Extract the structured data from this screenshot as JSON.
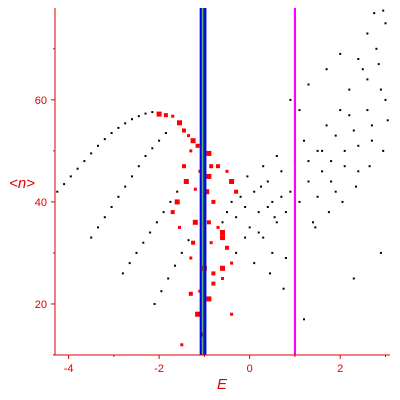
{
  "chart_data": {
    "type": "scatter",
    "xlabel": "E",
    "ylabel": "<n>",
    "xlim": [
      -4.3,
      3.1
    ],
    "ylim": [
      10,
      78
    ],
    "x_ticks": [
      -4,
      -2,
      0,
      2
    ],
    "y_ticks": [
      20,
      40,
      60
    ],
    "axis_color": "#e00000",
    "vertical_lines": [
      {
        "x": -1.08,
        "color": "#0000ff"
      },
      {
        "x": -1.02,
        "color": "#008000"
      },
      {
        "x": -0.98,
        "color": "#0000ff"
      },
      {
        "x": 1.0,
        "color": "#ff00ff"
      }
    ],
    "series": [
      {
        "color": "#000000",
        "points": [
          [
            -4.25,
            42.0
          ],
          [
            -4.1,
            43.5
          ],
          [
            -3.95,
            45.0
          ],
          [
            -3.8,
            46.5
          ],
          [
            -3.65,
            48.0
          ],
          [
            -3.5,
            49.5
          ],
          [
            -3.35,
            51.0
          ],
          [
            -3.2,
            52.3
          ],
          [
            -3.05,
            53.5
          ],
          [
            -2.9,
            54.5
          ],
          [
            -2.75,
            55.4
          ],
          [
            -2.6,
            56.2
          ],
          [
            -2.45,
            56.8
          ],
          [
            -2.3,
            57.3
          ],
          [
            -2.15,
            57.6
          ],
          [
            -3.5,
            33.0
          ],
          [
            -3.35,
            35.0
          ],
          [
            -3.2,
            37.0
          ],
          [
            -3.05,
            39.0
          ],
          [
            -2.9,
            41.0
          ],
          [
            -2.75,
            43.0
          ],
          [
            -2.6,
            45.0
          ],
          [
            -2.45,
            47.0
          ],
          [
            -2.3,
            49.0
          ],
          [
            -2.15,
            50.5
          ],
          [
            -2.0,
            52.0
          ],
          [
            -1.85,
            53.5
          ],
          [
            -2.8,
            26.0
          ],
          [
            -2.65,
            28.0
          ],
          [
            -2.5,
            30.0
          ],
          [
            -2.35,
            32.0
          ],
          [
            -2.2,
            34.0
          ],
          [
            -2.05,
            36.0
          ],
          [
            -1.9,
            38.0
          ],
          [
            -1.75,
            40.0
          ],
          [
            -1.6,
            42.0
          ],
          [
            -2.1,
            20.0
          ],
          [
            -1.95,
            22.5
          ],
          [
            -1.8,
            25.0
          ],
          [
            -1.65,
            27.5
          ],
          [
            -1.5,
            30.0
          ],
          [
            -1.35,
            32.5
          ],
          [
            -0.6,
            36.0
          ],
          [
            -0.5,
            38.0
          ],
          [
            -0.4,
            40.0
          ],
          [
            -0.3,
            37.0
          ],
          [
            -0.2,
            41.0
          ],
          [
            -0.1,
            39.0
          ],
          [
            0.0,
            35.0
          ],
          [
            0.1,
            42.0
          ],
          [
            0.2,
            38.0
          ],
          [
            0.3,
            33.0
          ],
          [
            0.4,
            44.0
          ],
          [
            0.5,
            40.0
          ],
          [
            0.6,
            36.0
          ],
          [
            0.7,
            46.0
          ],
          [
            0.8,
            38.0
          ],
          [
            0.9,
            42.0
          ],
          [
            1.0,
            48.0
          ],
          [
            1.1,
            40.0
          ],
          [
            1.2,
            52.0
          ],
          [
            1.3,
            44.0
          ],
          [
            1.4,
            36.0
          ],
          [
            1.5,
            50.0
          ],
          [
            1.6,
            46.0
          ],
          [
            1.7,
            55.0
          ],
          [
            1.8,
            48.0
          ],
          [
            1.9,
            42.0
          ],
          [
            2.0,
            58.0
          ],
          [
            2.1,
            50.0
          ],
          [
            2.2,
            62.0
          ],
          [
            2.3,
            54.0
          ],
          [
            2.4,
            46.0
          ],
          [
            2.5,
            66.0
          ],
          [
            2.6,
            58.0
          ],
          [
            2.7,
            52.0
          ],
          [
            2.8,
            70.0
          ],
          [
            2.9,
            62.0
          ],
          [
            3.0,
            75.0
          ],
          [
            3.05,
            56.0
          ],
          [
            2.75,
            77.0
          ],
          [
            2.95,
            77.5
          ],
          [
            2.6,
            73.0
          ],
          [
            2.4,
            68.0
          ],
          [
            2.2,
            57.0
          ],
          [
            1.9,
            53.0
          ],
          [
            1.6,
            50.0
          ],
          [
            1.3,
            48.0
          ],
          [
            1.0,
            45.0
          ],
          [
            0.7,
            41.0
          ],
          [
            0.4,
            39.0
          ],
          [
            0.2,
            34.0
          ],
          [
            -0.1,
            33.0
          ],
          [
            0.5,
            30.0
          ],
          [
            0.8,
            29.0
          ],
          [
            1.2,
            17.0
          ],
          [
            2.3,
            25.0
          ],
          [
            2.9,
            30.0
          ],
          [
            1.5,
            41.0
          ],
          [
            1.8,
            44.0
          ],
          [
            2.1,
            47.0
          ],
          [
            2.4,
            51.0
          ],
          [
            2.7,
            55.0
          ],
          [
            3.0,
            60.0
          ],
          [
            1.1,
            58.0
          ],
          [
            0.9,
            60.0
          ],
          [
            1.3,
            63.0
          ],
          [
            1.7,
            66.0
          ],
          [
            2.0,
            69.0
          ],
          [
            2.6,
            64.0
          ],
          [
            2.85,
            67.0
          ],
          [
            0.3,
            47.0
          ],
          [
            0.6,
            49.0
          ],
          [
            -0.3,
            30.0
          ],
          [
            0.1,
            28.0
          ],
          [
            0.45,
            26.0
          ],
          [
            0.75,
            23.0
          ],
          [
            1.45,
            35.0
          ],
          [
            1.75,
            38.0
          ],
          [
            2.05,
            40.0
          ],
          [
            2.35,
            43.0
          ],
          [
            2.65,
            47.0
          ],
          [
            2.95,
            50.0
          ],
          [
            -0.05,
            45.0
          ],
          [
            0.25,
            43.0
          ],
          [
            0.55,
            37.0
          ]
        ]
      },
      {
        "color": "#ff0000",
        "points": [
          [
            -2.0,
            57.2
          ],
          [
            -1.85,
            57.0
          ],
          [
            -1.7,
            56.8
          ],
          [
            -1.55,
            55.5
          ],
          [
            -1.45,
            54.0
          ],
          [
            -1.35,
            53.0
          ],
          [
            -1.25,
            52.0
          ],
          [
            -1.15,
            51.0
          ],
          [
            -1.3,
            50.0
          ],
          [
            -0.9,
            49.5
          ],
          [
            -0.85,
            47.0
          ],
          [
            -1.1,
            46.0
          ],
          [
            -0.9,
            45.0
          ],
          [
            -0.7,
            47.0
          ],
          [
            -0.5,
            46.0
          ],
          [
            -0.4,
            44.0
          ],
          [
            -0.3,
            42.0
          ],
          [
            -1.2,
            42.5
          ],
          [
            -0.95,
            42.0
          ],
          [
            -0.8,
            40.0
          ],
          [
            -1.0,
            38.5
          ],
          [
            -1.2,
            36.0
          ],
          [
            -0.9,
            36.0
          ],
          [
            -0.7,
            35.0
          ],
          [
            -0.6,
            34.0
          ],
          [
            -1.25,
            32.0
          ],
          [
            -0.85,
            32.0
          ],
          [
            -0.6,
            33.0
          ],
          [
            -0.5,
            31.0
          ],
          [
            -1.3,
            29.0
          ],
          [
            -1.0,
            27.0
          ],
          [
            -0.8,
            26.0
          ],
          [
            -0.4,
            28.0
          ],
          [
            -0.6,
            27.0
          ],
          [
            -1.3,
            22.0
          ],
          [
            -1.1,
            22.5
          ],
          [
            -0.9,
            21.0
          ],
          [
            -0.8,
            24.0
          ],
          [
            -0.6,
            25.0
          ],
          [
            -1.15,
            18.0
          ],
          [
            -1.05,
            14.0
          ],
          [
            -1.5,
            12.0
          ],
          [
            -1.6,
            40.0
          ],
          [
            -1.7,
            38.0
          ],
          [
            -1.55,
            35.0
          ],
          [
            -1.4,
            44.0
          ],
          [
            -1.45,
            47.0
          ],
          [
            -0.4,
            18.0
          ]
        ]
      }
    ]
  }
}
